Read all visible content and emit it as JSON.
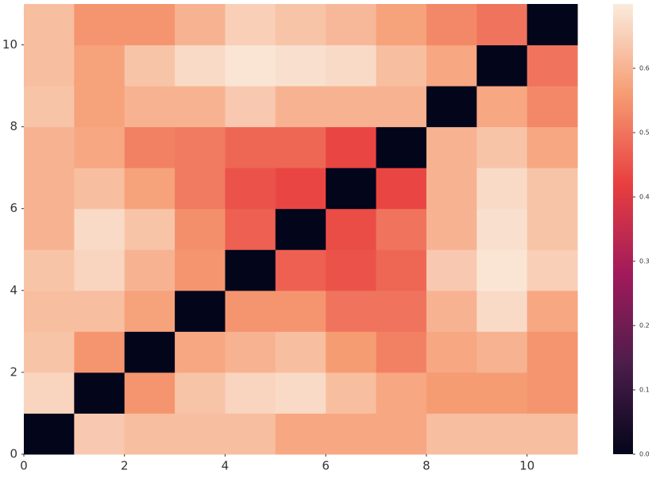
{
  "chart_data": {
    "type": "heatmap",
    "xlim": [
      0,
      11
    ],
    "ylim": [
      0,
      11
    ],
    "xticks": [
      0,
      2,
      4,
      6,
      8,
      10
    ],
    "yticks": [
      0,
      2,
      4,
      6,
      8,
      10
    ],
    "z": [
      [
        0,
        0.64,
        0.62,
        0.62,
        0.62,
        0.58,
        0.58,
        0.58,
        0.62,
        0.62,
        0.62
      ],
      [
        0.66,
        0,
        0.55,
        0.63,
        0.66,
        0.67,
        0.62,
        0.58,
        0.56,
        0.56,
        0.55
      ],
      [
        0.63,
        0.55,
        0,
        0.58,
        0.6,
        0.62,
        0.56,
        0.52,
        0.58,
        0.6,
        0.55
      ],
      [
        0.62,
        0.62,
        0.57,
        0,
        0.55,
        0.55,
        0.5,
        0.5,
        0.6,
        0.67,
        0.58
      ],
      [
        0.63,
        0.66,
        0.6,
        0.55,
        0,
        0.47,
        0.45,
        0.48,
        0.64,
        0.69,
        0.65
      ],
      [
        0.6,
        0.67,
        0.63,
        0.54,
        0.47,
        0,
        0.44,
        0.5,
        0.6,
        0.68,
        0.63
      ],
      [
        0.6,
        0.62,
        0.57,
        0.51,
        0.45,
        0.43,
        0,
        0.43,
        0.6,
        0.67,
        0.63
      ],
      [
        0.6,
        0.58,
        0.52,
        0.51,
        0.48,
        0.48,
        0.43,
        0,
        0.6,
        0.63,
        0.58
      ],
      [
        0.63,
        0.57,
        0.6,
        0.6,
        0.64,
        0.6,
        0.6,
        0.6,
        0,
        0.58,
        0.53
      ],
      [
        0.62,
        0.57,
        0.63,
        0.67,
        0.69,
        0.68,
        0.67,
        0.62,
        0.58,
        0,
        0.5
      ],
      [
        0.62,
        0.55,
        0.55,
        0.6,
        0.65,
        0.63,
        0.61,
        0.57,
        0.53,
        0.5,
        0
      ]
    ],
    "vlim": [
      0,
      0.7
    ],
    "colormap": [
      "#03051a",
      "#4c1d4b",
      "#a11a5b",
      "#e83f3f",
      "#f69c73",
      "#faebdd"
    ],
    "colorbar_ticks": [
      {
        "value": 0,
        "label": "0.0"
      },
      {
        "value": 0.1,
        "label": "0.1"
      },
      {
        "value": 0.2,
        "label": "0.2"
      },
      {
        "value": 0.3,
        "label": "0.3"
      },
      {
        "value": 0.4,
        "label": "0.4"
      },
      {
        "value": 0.5,
        "label": "0.5"
      },
      {
        "value": 0.6,
        "label": "0.6"
      }
    ]
  }
}
